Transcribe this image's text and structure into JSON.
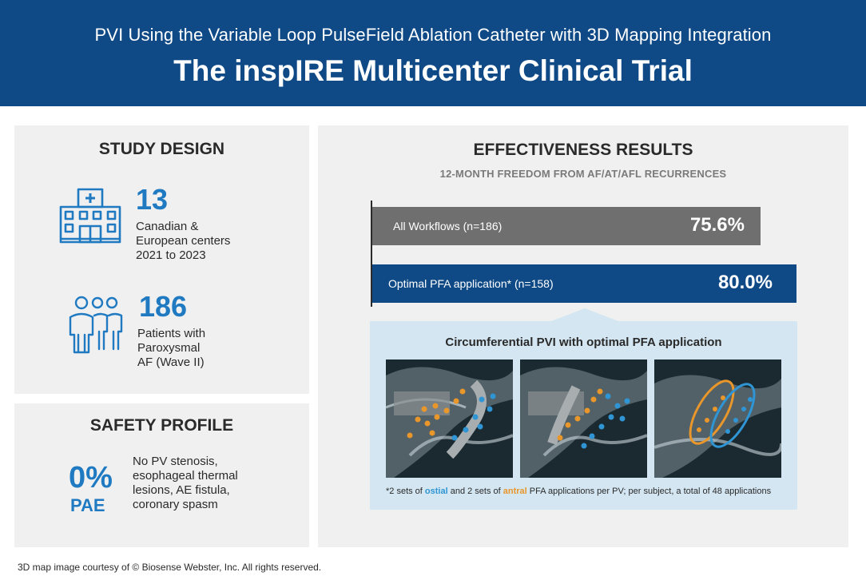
{
  "header": {
    "subtitle": "PVI Using the Variable Loop PulseField Ablation Catheter with 3D Mapping Integration",
    "title": "The inspIRE Multicenter Clinical Trial"
  },
  "study_design": {
    "title": "STUDY DESIGN",
    "centers": {
      "icon": "hospital-icon",
      "number": "13",
      "line1": "Canadian &",
      "line2": "European centers",
      "line3": "2021 to 2023"
    },
    "patients": {
      "icon": "people-icon",
      "number": "186",
      "line1": "Patients with",
      "line2": "Paroxysmal",
      "line3": "AF (Wave II)"
    }
  },
  "safety_profile": {
    "title": "SAFETY PROFILE",
    "number": "0%",
    "label": "PAE",
    "line1": "No PV stenosis,",
    "line2": "esophageal thermal",
    "line3": "lesions, AE fistula,",
    "line4": "coronary spasm"
  },
  "effectiveness": {
    "title": "EFFECTIVENESS RESULTS",
    "subtitle": "12-MONTH FREEDOM FROM AF/AT/AFL RECURRENCES",
    "bars": [
      {
        "label": "All Workflows (n=186)",
        "value": "75.6%",
        "fraction": 0.756,
        "color": "#6f6f6f"
      },
      {
        "label": "Optimal PFA application* (n=158)",
        "value": "80.0%",
        "fraction": 0.8,
        "color": "#0f4a87"
      }
    ],
    "callout": {
      "title": "Circumferential PVI with optimal PFA application",
      "note_pre": "*2 sets of ",
      "note_ostial": "ostial",
      "note_mid": " and 2 sets of ",
      "note_antral": "antral",
      "note_post": " PFA applications per PV; per subject, a total of 48 applications",
      "ostial_color": "#2f95d4",
      "antral_color": "#e9962b"
    }
  },
  "credit": "3D map image courtesy of © Biosense Webster, Inc. All rights reserved."
}
